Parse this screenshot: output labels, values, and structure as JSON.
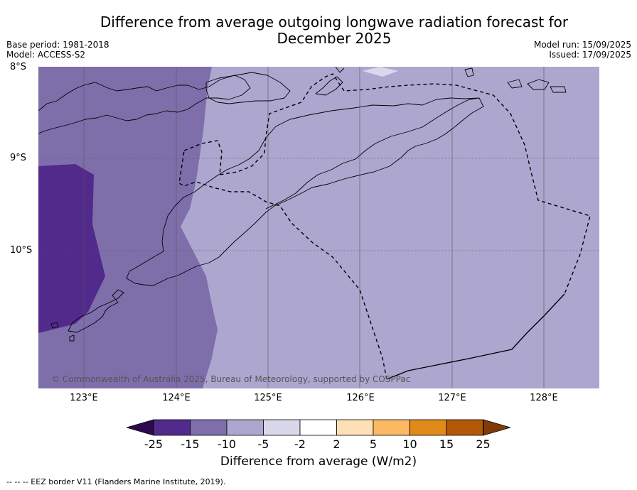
{
  "header": {
    "title_line1": "Difference from average outgoing longwave radiation forecast for",
    "title_line2": "December 2025",
    "base_period": "Base period: 1981-2018",
    "model": "Model: ACCESS-S2",
    "model_run": "Model run: 15/09/2025",
    "issued": "Issued: 17/09/2025"
  },
  "map": {
    "lat_labels": [
      "8°S",
      "9°S",
      "10°S"
    ],
    "lon_labels": [
      "123°E",
      "124°E",
      "125°E",
      "126°E",
      "127°E",
      "128°E"
    ],
    "copyright": "© Commonwealth of Australia 2025, Bureau of Meteorology, supported by COSPPac",
    "colors": {
      "band_lt_minus15": "#522a8c",
      "band_minus15_minus10": "#7e6fab",
      "band_minus10_minus5": "#ada7cf",
      "band_minus5_minus2": "#d8d8ea",
      "grid": "#555555",
      "coast": "#000000"
    }
  },
  "colorbar": {
    "ticks": [
      "-25",
      "-15",
      "-10",
      "-5",
      "-2",
      "2",
      "5",
      "10",
      "15",
      "25"
    ],
    "colors": [
      "#522a8c",
      "#7e6fab",
      "#ada7cf",
      "#d8d8ea",
      "#ffffff",
      "#fde0b6",
      "#fdb863",
      "#e08a1a",
      "#b35806"
    ],
    "under_color": "#2d0a4e",
    "over_color": "#7f3b08",
    "label": "Difference from average (W/m2)"
  },
  "footnote": "--  --  -- EEZ border V11 (Flanders Marine Institute, 2019)."
}
